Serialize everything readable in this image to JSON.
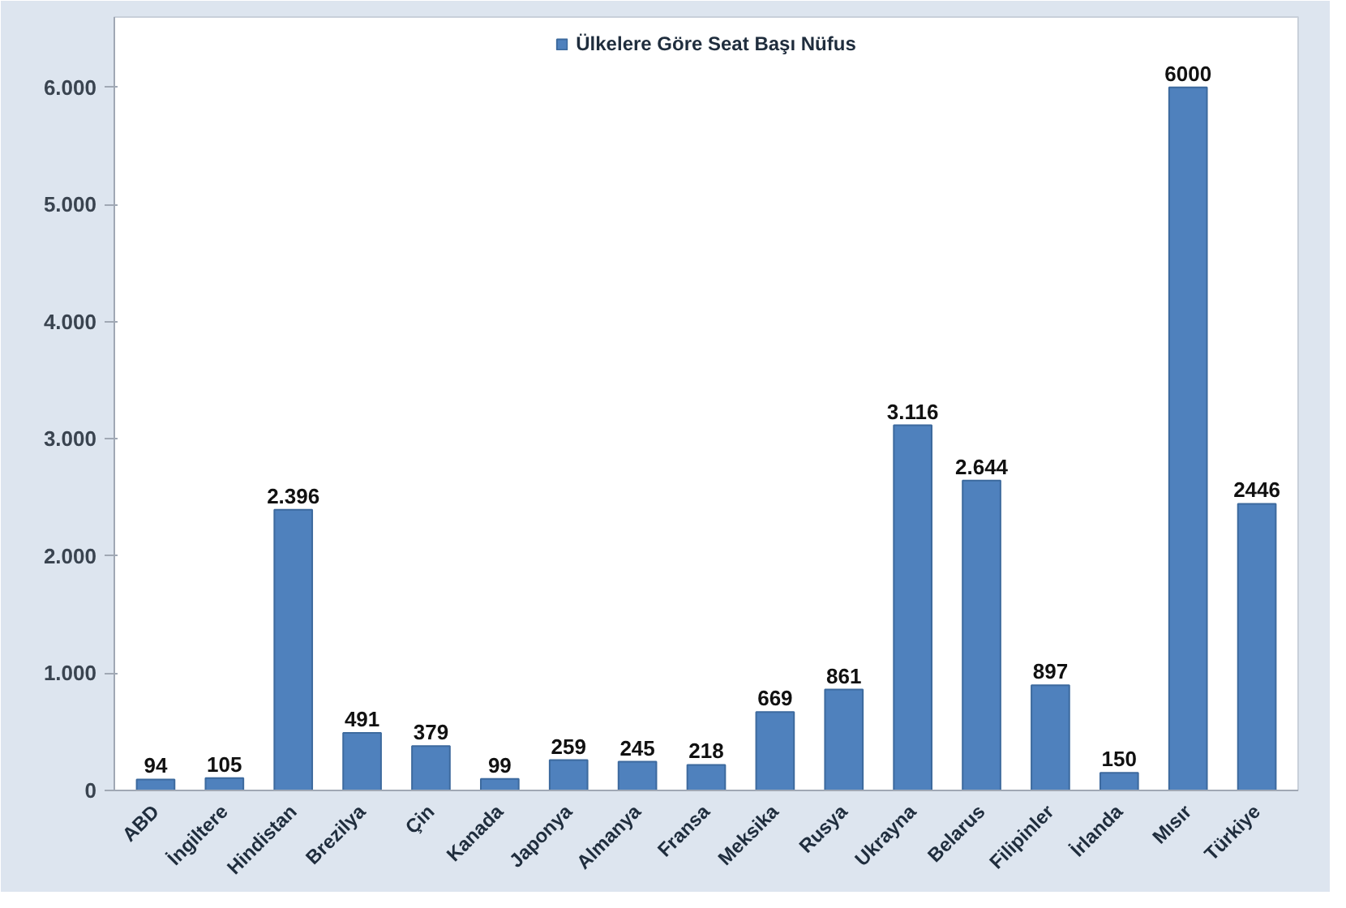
{
  "chart_data": {
    "type": "bar",
    "categories": [
      "ABD",
      "İngiltere",
      "Hindistan",
      "Brezilya",
      "Çin",
      "Kanada",
      "Japonya",
      "Almanya",
      "Fransa",
      "Meksika",
      "Rusya",
      "Ukrayna",
      "Belarus",
      "Filipinler",
      "İrlanda",
      "Mısır",
      "Türkiye"
    ],
    "series": [
      {
        "name": "Ülkelere Göre Seat Başı Nüfus",
        "color": "#4f81bd",
        "values": [
          94,
          105,
          2396,
          491,
          379,
          99,
          259,
          245,
          218,
          669,
          861,
          3116,
          2644,
          897,
          150,
          6000,
          2446
        ],
        "value_labels": [
          "94",
          "105",
          "2.396",
          "491",
          "379",
          "99",
          "259",
          "245",
          "218",
          "669",
          "861",
          "3.116",
          "2.644",
          "897",
          "150",
          "6000",
          "2446"
        ]
      }
    ],
    "ylim": [
      0,
      6600
    ],
    "yticks": [
      0,
      {
        "value": 1000,
        "label": "1.000"
      },
      {
        "value": 2000,
        "label": "2.000"
      },
      {
        "value": 3000,
        "label": "3.000"
      },
      {
        "value": 4000,
        "label": "4.000"
      },
      {
        "value": 5000,
        "label": "5.000"
      },
      {
        "value": 6000,
        "label": "6.000"
      }
    ],
    "grid": false,
    "legend": "top"
  }
}
